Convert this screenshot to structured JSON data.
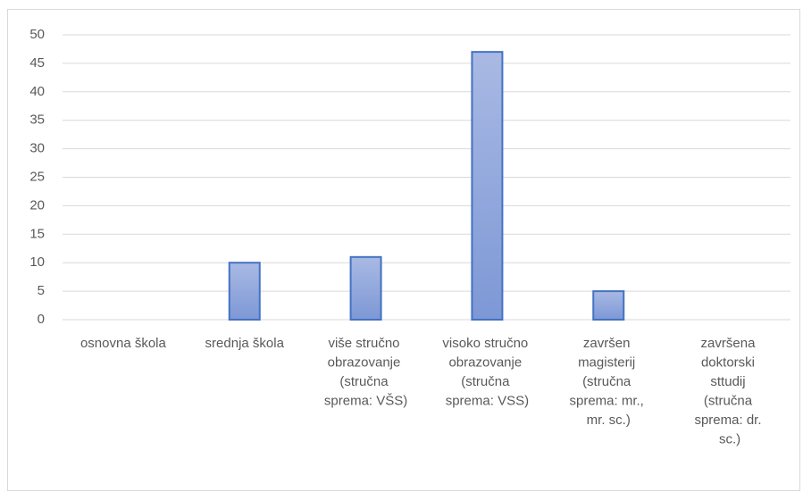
{
  "chart_data": {
    "type": "bar",
    "categories": [
      "osnovna škola",
      "srednja škola",
      "više stručno obrazovanje (stručna sprema: VŠS)",
      "visoko stručno obrazovanje (stručna sprema: VSS)",
      "završen magisterij (stručna sprema: mr., mr. sc.)",
      "završena doktorski sttudij (stručna sprema: dr. sc.)"
    ],
    "values": [
      0,
      10,
      11,
      47,
      5,
      0
    ],
    "color": "#4472c4",
    "ylim": [
      0,
      50
    ],
    "yticks": [
      0,
      5,
      10,
      15,
      20,
      25,
      30,
      35,
      40,
      45,
      50
    ],
    "grid": true
  }
}
